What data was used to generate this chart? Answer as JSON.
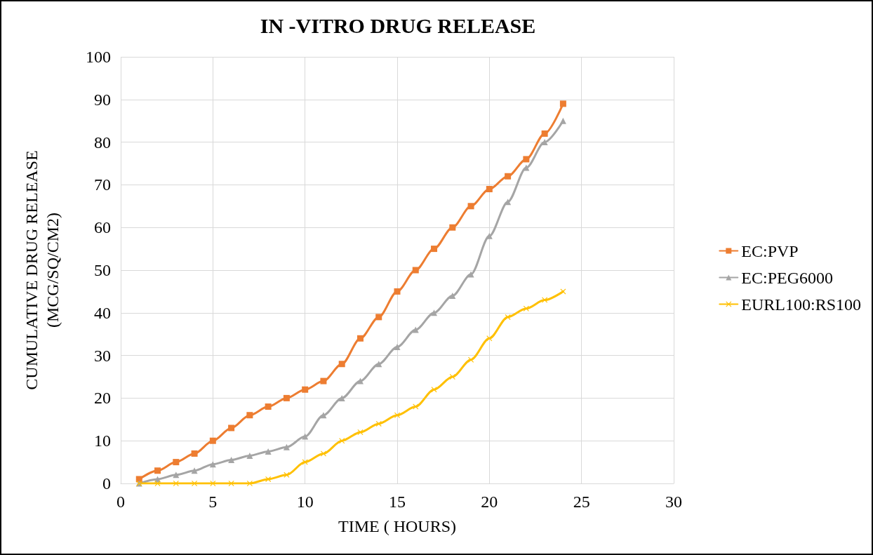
{
  "chart_data": {
    "type": "line",
    "title": "IN -VITRO DRUG RELEASE",
    "xlabel": "TIME ( HOURS)",
    "ylabel": "CUMULATIVE DRUG RELEASE\n(MCG/SQ/CM2)",
    "x": [
      1,
      2,
      3,
      4,
      5,
      6,
      7,
      8,
      9,
      10,
      11,
      12,
      13,
      14,
      15,
      16,
      17,
      18,
      19,
      20,
      21,
      22,
      23,
      24
    ],
    "series": [
      {
        "name": "EC:PVP",
        "color": "#ed7d31",
        "marker": "square",
        "values": [
          1,
          3,
          5,
          7,
          10,
          13,
          16,
          18,
          20,
          22,
          24,
          28,
          34,
          39,
          45,
          50,
          55,
          60,
          65,
          69,
          72,
          76,
          82,
          89
        ]
      },
      {
        "name": "EC:PEG6000",
        "color": "#a5a5a5",
        "marker": "triangle",
        "values": [
          0,
          1,
          2,
          3,
          4.5,
          5.5,
          6.5,
          7.5,
          8.5,
          11,
          16,
          20,
          24,
          28,
          32,
          36,
          40,
          44,
          49,
          58,
          66,
          74,
          80,
          85
        ]
      },
      {
        "name": "EURL100:RS100",
        "color": "#ffc000",
        "marker": "cross",
        "values": [
          0,
          0,
          0,
          0,
          0,
          0,
          0,
          1,
          2,
          5,
          7,
          10,
          12,
          14,
          16,
          18,
          22,
          25,
          29,
          34,
          39,
          41,
          43,
          45
        ]
      }
    ],
    "xlim": [
      0,
      30
    ],
    "xticks": [
      0,
      5,
      10,
      15,
      20,
      25,
      30
    ],
    "ylim": [
      0,
      100
    ],
    "yticks": [
      0,
      10,
      20,
      30,
      40,
      50,
      60,
      70,
      80,
      90,
      100
    ],
    "grid": true,
    "legend": "right",
    "line_style": "solid"
  }
}
